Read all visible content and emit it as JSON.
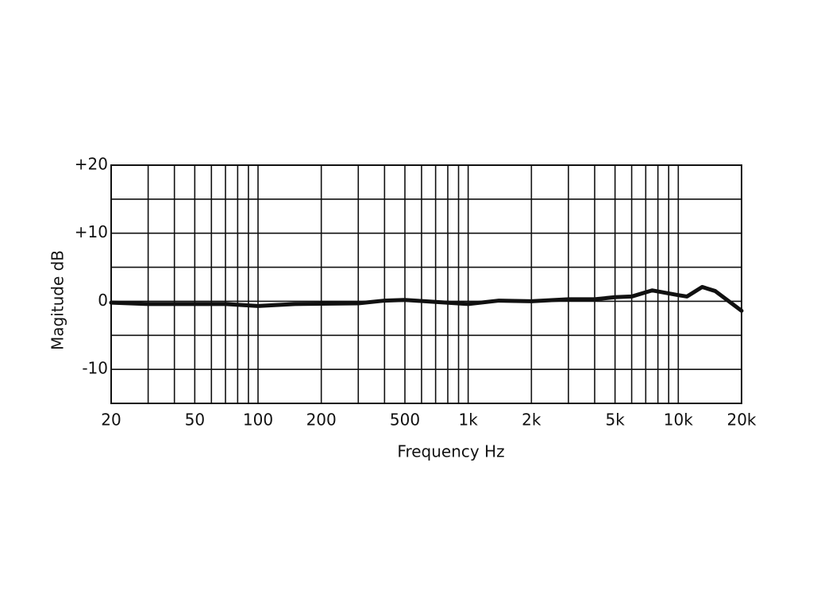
{
  "chart_data": {
    "type": "line",
    "x_label": "Frequency Hz",
    "y_label": "Magitude dB",
    "log_x": true,
    "grid": true,
    "color": "#111111",
    "x": [
      20,
      30,
      50,
      70,
      100,
      150,
      300,
      400,
      500,
      700,
      1000,
      1400,
      2000,
      3000,
      4000,
      5000,
      6000,
      7500,
      10000,
      11000,
      13000,
      15000,
      20000
    ],
    "values": [
      -0.2,
      -0.4,
      -0.4,
      -0.4,
      -0.7,
      -0.4,
      -0.3,
      0.1,
      0.2,
      -0.1,
      -0.4,
      0.1,
      0,
      0.3,
      0.3,
      0.6,
      0.7,
      1.6,
      0.9,
      0.7,
      2.1,
      1.5,
      -1.4
    ],
    "xlim": [
      20,
      20000
    ],
    "xticks": [
      20,
      50,
      100,
      200,
      500,
      {
        "value": 1000,
        "label": "1k"
      },
      {
        "value": 2000,
        "label": "2k"
      },
      {
        "value": 5000,
        "label": "5k"
      },
      {
        "value": 10000,
        "label": "10k"
      },
      {
        "value": 20000,
        "label": "20k"
      }
    ],
    "xminor": [
      30,
      40,
      60,
      70,
      80,
      90,
      300,
      400,
      600,
      700,
      800,
      900,
      3000,
      4000,
      6000,
      7000,
      8000,
      9000
    ],
    "ylim": [
      -15,
      20
    ],
    "yticks": [
      {
        "value": 20,
        "label": "+20"
      },
      {
        "value": 10,
        "label": "+10"
      },
      0,
      -10
    ],
    "yminor": [
      15,
      5,
      -5
    ]
  }
}
